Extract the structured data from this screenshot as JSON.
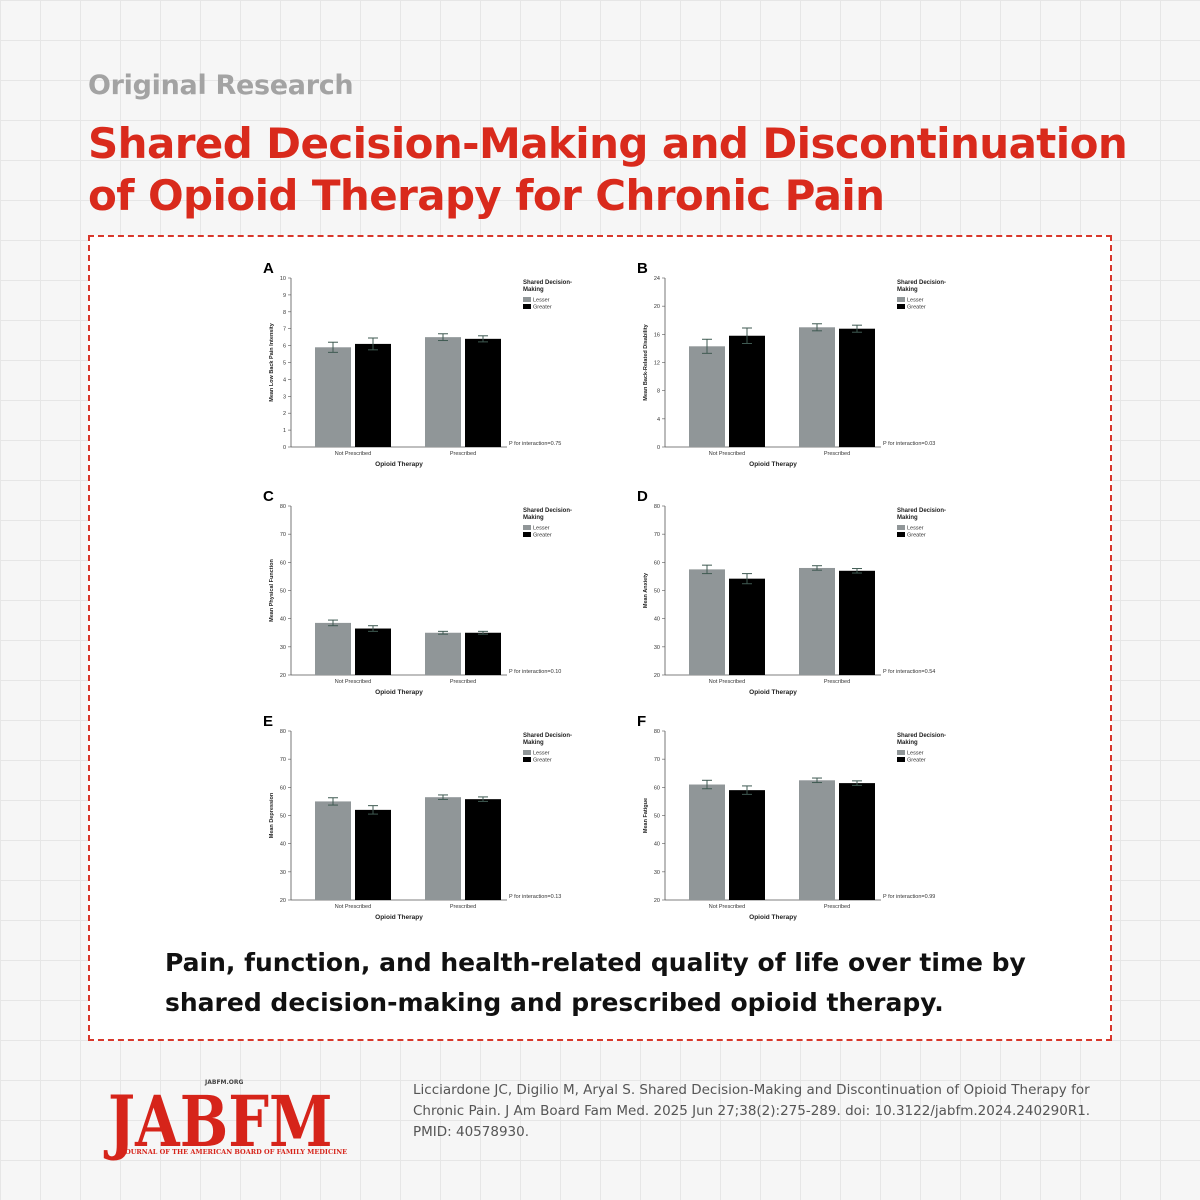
{
  "header": {
    "eyebrow": "Original Research",
    "title": "Shared Decision-Making and Discontinuation of Opioid Therapy for Chronic Pain"
  },
  "caption": "Pain, function, and health-related quality of life over time by shared decision-making and prescribed opioid therapy.",
  "footer": {
    "logo_url": "JABFM.ORG",
    "logo_text": "JABFM",
    "logo_tagline": "JOURNAL OF THE AMERICAN BOARD OF FAMILY MEDICINE",
    "citation": "Licciardone JC, Digilio M, Aryal S. Shared Decision-Making and Discontinuation of Opioid Therapy for Chronic Pain. J Am Board Fam Med. 2025 Jun 27;38(2):275-289. doi: 10.3122/jabfm.2024.240290R1. PMID: 40578930."
  },
  "colors": {
    "title_red": "#d92a1c",
    "frame_red": "#d8372b",
    "lesser_bar": "#909698",
    "greater_bar": "#000000",
    "error_bar": "#3f5a52"
  },
  "chart_data": [
    {
      "panel": "A",
      "type": "bar",
      "categories": [
        "Not Prescribed",
        "Prescribed"
      ],
      "xlabel": "Opioid Therapy",
      "ylabel": "Mean Low Back Pain Intensity",
      "ylim": [
        0,
        10
      ],
      "yticks": [
        0,
        1,
        2,
        3,
        4,
        5,
        6,
        7,
        8,
        9,
        10
      ],
      "legend_title": "Shared Decision-Making",
      "legend_position": "top-right",
      "series": [
        {
          "name": "Lesser",
          "values": [
            5.9,
            6.5
          ],
          "errors": [
            0.3,
            0.2
          ]
        },
        {
          "name": "Greater",
          "values": [
            6.1,
            6.4
          ],
          "errors": [
            0.35,
            0.18
          ]
        }
      ],
      "annotation": "P for interaction=0.75"
    },
    {
      "panel": "B",
      "type": "bar",
      "categories": [
        "Not Prescribed",
        "Prescribed"
      ],
      "xlabel": "Opioid Therapy",
      "ylabel": "Mean Back-Related Disability",
      "ylim": [
        0,
        24
      ],
      "yticks": [
        0,
        4,
        8,
        12,
        16,
        20,
        24
      ],
      "legend_title": "Shared Decision-Making",
      "legend_position": "top-right",
      "series": [
        {
          "name": "Lesser",
          "values": [
            14.3,
            17.0
          ],
          "errors": [
            1.0,
            0.5
          ]
        },
        {
          "name": "Greater",
          "values": [
            15.8,
            16.8
          ],
          "errors": [
            1.1,
            0.5
          ]
        }
      ],
      "annotation": "P for interaction=0.03"
    },
    {
      "panel": "C",
      "type": "bar",
      "categories": [
        "Not Prescribed",
        "Prescribed"
      ],
      "xlabel": "Opioid Therapy",
      "ylabel": "Mean Physical Function",
      "ylim": [
        20,
        80
      ],
      "yticks": [
        20,
        30,
        40,
        50,
        60,
        70,
        80
      ],
      "legend_title": "Shared Decision-Making",
      "legend_position": "top-right",
      "series": [
        {
          "name": "Lesser",
          "values": [
            38.5,
            35.0
          ],
          "errors": [
            1.0,
            0.5
          ]
        },
        {
          "name": "Greater",
          "values": [
            36.5,
            35.0
          ],
          "errors": [
            1.0,
            0.5
          ]
        }
      ],
      "annotation": "P for interaction=0.10"
    },
    {
      "panel": "D",
      "type": "bar",
      "categories": [
        "Not Prescribed",
        "Prescribed"
      ],
      "xlabel": "Opioid Therapy",
      "ylabel": "Mean Anxiety",
      "ylim": [
        20,
        80
      ],
      "yticks": [
        20,
        30,
        40,
        50,
        60,
        70,
        80
      ],
      "legend_title": "Shared Decision-Making",
      "legend_position": "top-right",
      "series": [
        {
          "name": "Lesser",
          "values": [
            57.5,
            58.0
          ],
          "errors": [
            1.5,
            0.8
          ]
        },
        {
          "name": "Greater",
          "values": [
            54.2,
            57.0
          ],
          "errors": [
            1.8,
            0.8
          ]
        }
      ],
      "annotation": "P for interaction=0.54"
    },
    {
      "panel": "E",
      "type": "bar",
      "categories": [
        "Not Prescribed",
        "Prescribed"
      ],
      "xlabel": "Opioid Therapy",
      "ylabel": "Mean Depression",
      "ylim": [
        20,
        80
      ],
      "yticks": [
        20,
        30,
        40,
        50,
        60,
        70,
        80
      ],
      "legend_title": "Shared Decision-Making",
      "legend_position": "top-right",
      "series": [
        {
          "name": "Lesser",
          "values": [
            55.0,
            56.5
          ],
          "errors": [
            1.3,
            0.8
          ]
        },
        {
          "name": "Greater",
          "values": [
            52.0,
            55.8
          ],
          "errors": [
            1.5,
            0.8
          ]
        }
      ],
      "annotation": "P for interaction=0.13"
    },
    {
      "panel": "F",
      "type": "bar",
      "categories": [
        "Not Prescribed",
        "Prescribed"
      ],
      "xlabel": "Opioid Therapy",
      "ylabel": "Mean Fatigue",
      "ylim": [
        20,
        80
      ],
      "yticks": [
        20,
        30,
        40,
        50,
        60,
        70,
        80
      ],
      "legend_title": "Shared Decision-Making",
      "legend_position": "top-right",
      "series": [
        {
          "name": "Lesser",
          "values": [
            61.0,
            62.5
          ],
          "errors": [
            1.5,
            0.8
          ]
        },
        {
          "name": "Greater",
          "values": [
            59.0,
            61.5
          ],
          "errors": [
            1.5,
            0.8
          ]
        }
      ],
      "annotation": "P for interaction=0.99"
    }
  ]
}
